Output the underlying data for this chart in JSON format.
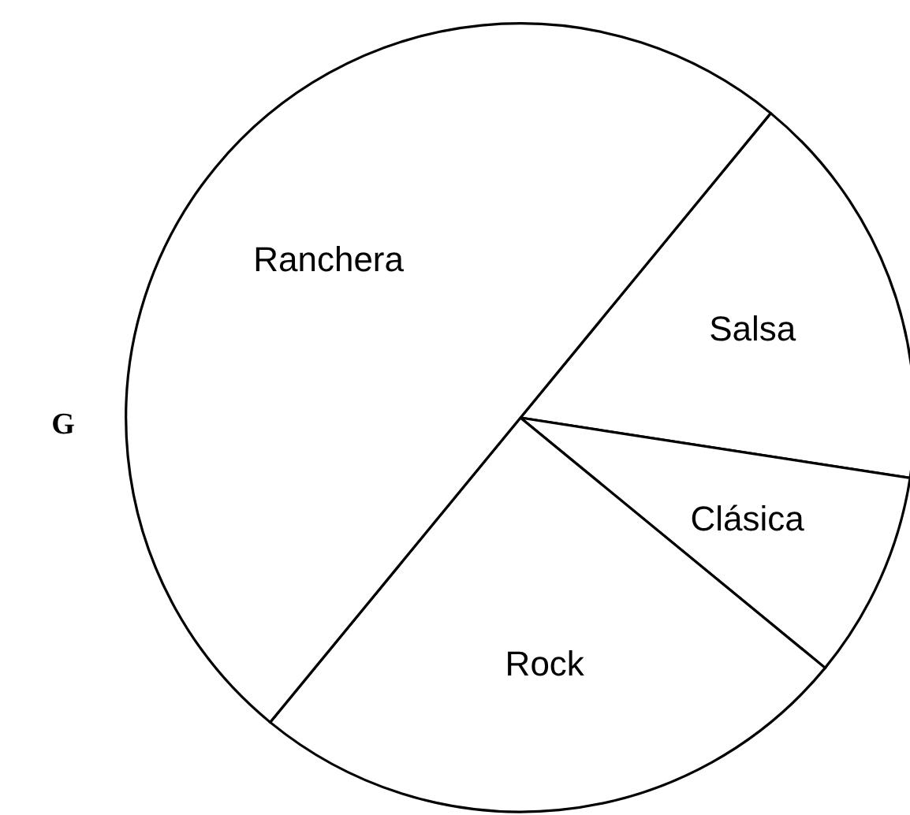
{
  "chart_data": {
    "type": "pie",
    "categories": [
      "Salsa",
      "Clásica",
      "Rock",
      "Ranchera"
    ],
    "values": [
      16.5,
      8.5,
      25,
      50
    ],
    "colors": [
      "#ffffff",
      "#ffffff",
      "#ffffff",
      "#ffffff"
    ],
    "annotations": [
      "G"
    ]
  }
}
